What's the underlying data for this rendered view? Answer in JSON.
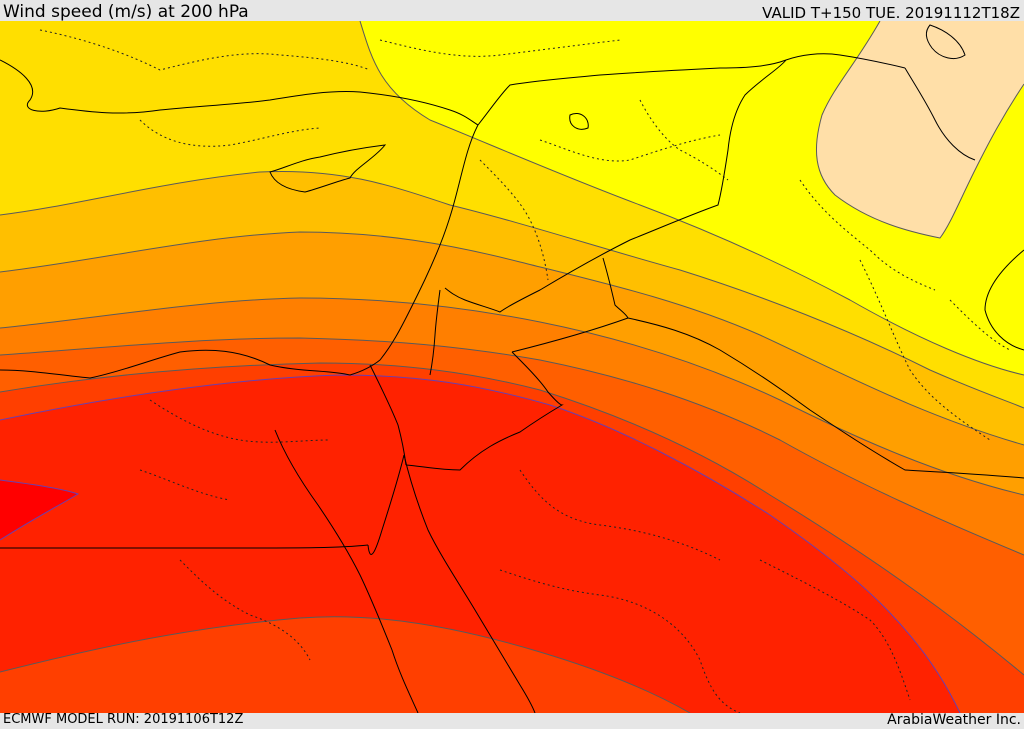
{
  "header": {
    "title": "Wind speed (m/s) at 200 hPa",
    "valid_time": "VALID T+150 TUE. 20191112T18Z"
  },
  "footer": {
    "model_run": "ECMWF MODEL RUN: 20191106T12Z",
    "credit": "ArabiaWeather Inc."
  },
  "map": {
    "parameter": "wind speed",
    "level_hpa": 200,
    "units": "m/s",
    "colors": {
      "band_1": "#ffdfa8",
      "band_2": "#ffff00",
      "band_3": "#ffdf00",
      "band_4": "#ffbf00",
      "band_5": "#ff9f00",
      "band_6": "#ff7f00",
      "band_7": "#ff5f00",
      "band_8": "#ff3f00",
      "band_9": "#ff2200",
      "band_10": "#ff0000",
      "contour_line": "#5a5a5a",
      "jet_contour": "#6a3fb0",
      "borders": "#000000"
    }
  }
}
